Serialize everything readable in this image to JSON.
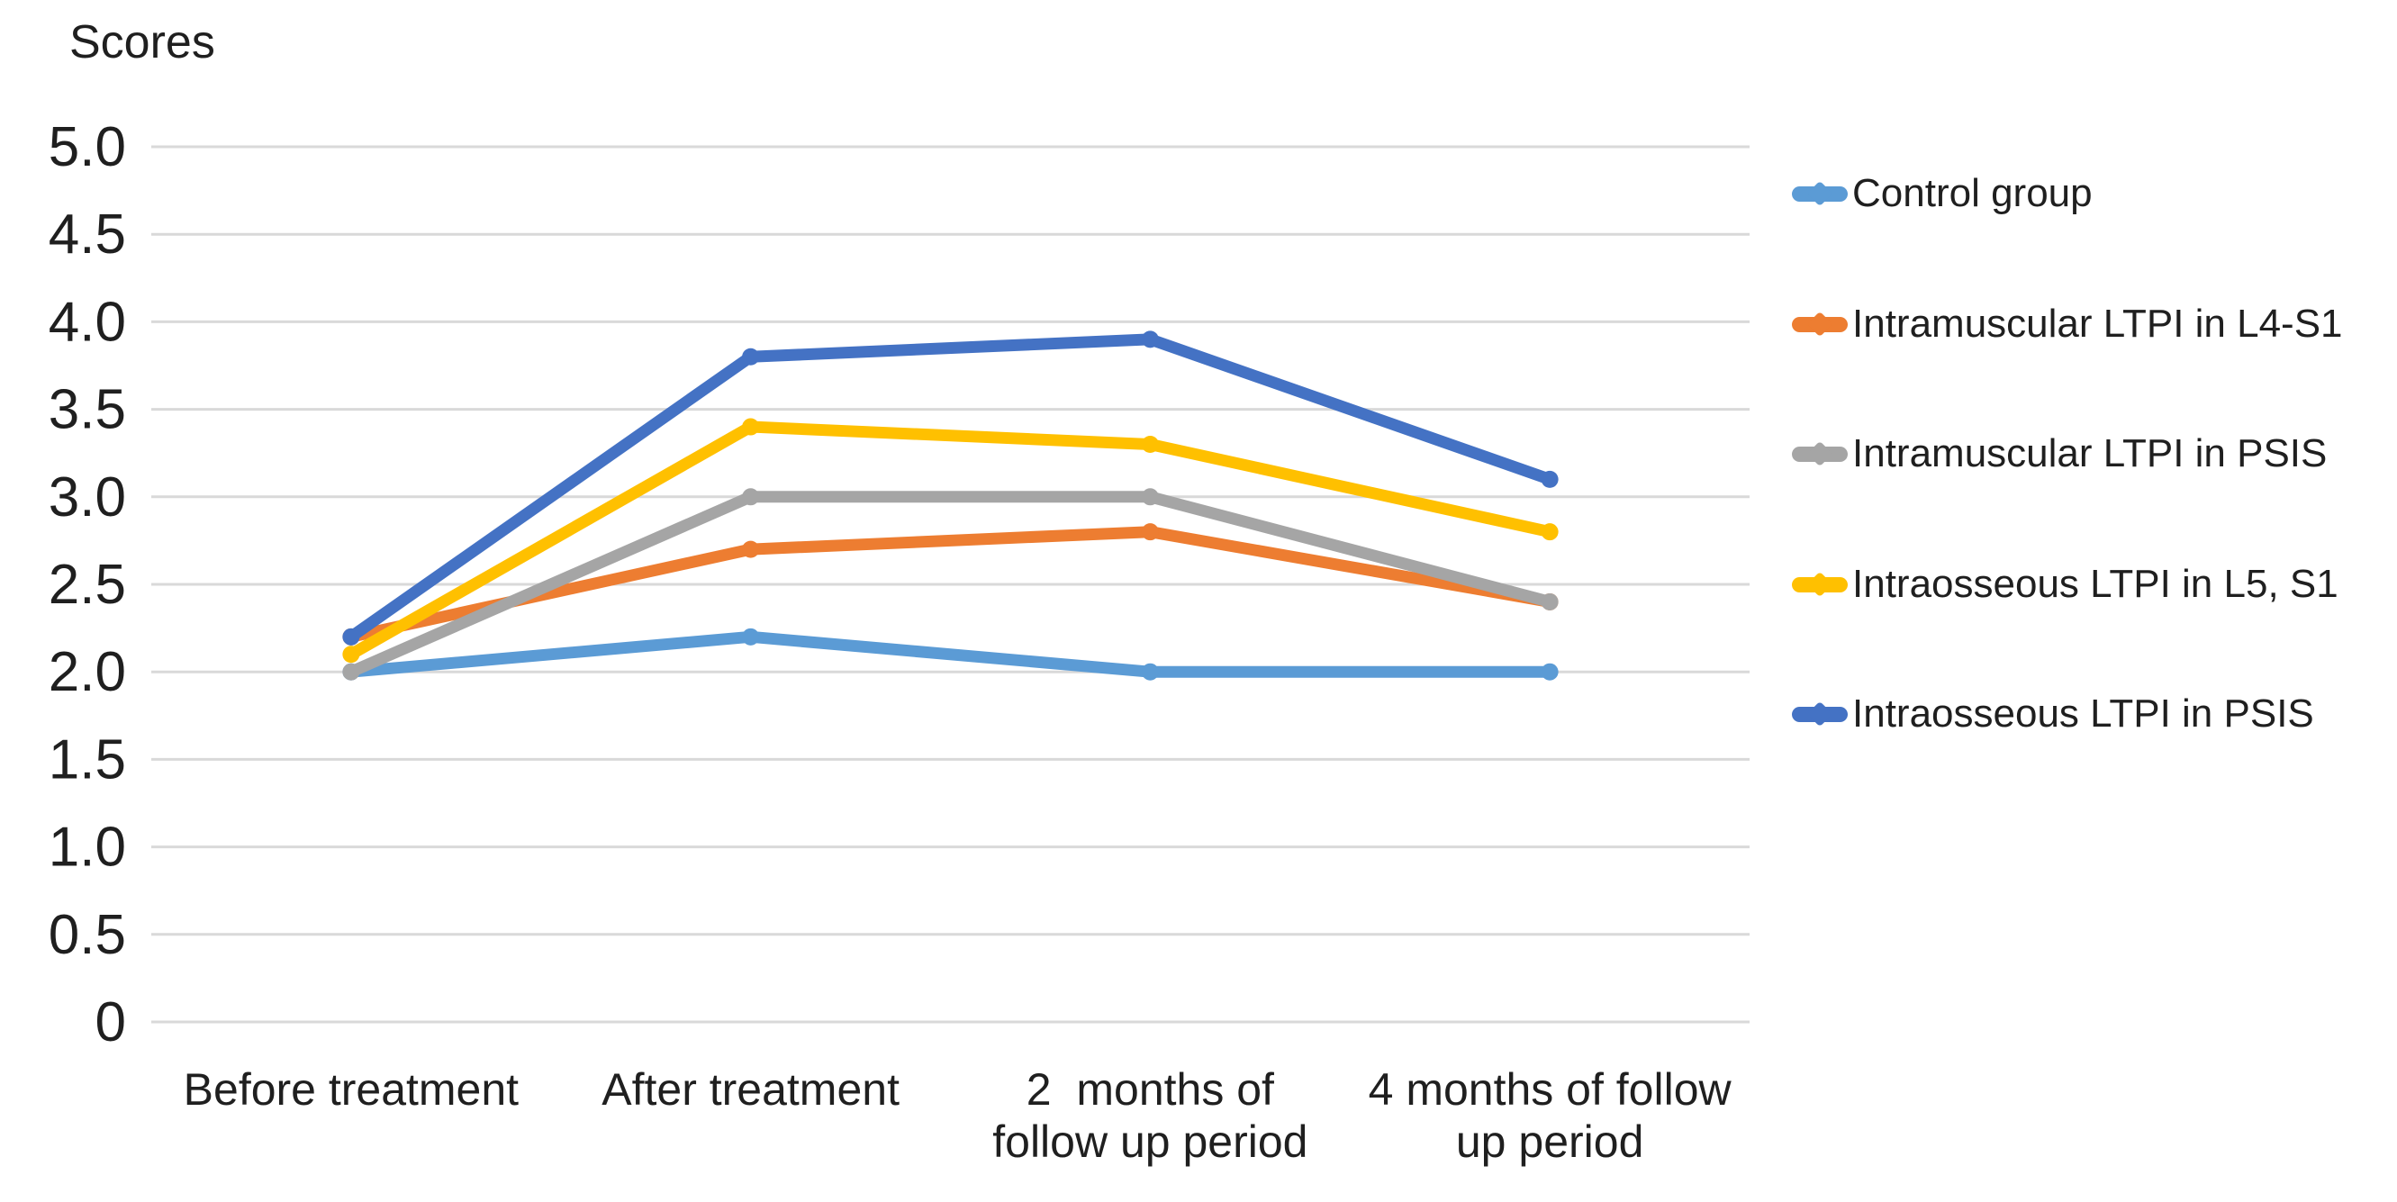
{
  "title": "Scores",
  "chart_data": {
    "type": "line",
    "title": "Scores",
    "xlabel": "",
    "ylabel": "Scores",
    "categories": [
      "Before treatment",
      "After treatment",
      "2 months of follow up period",
      "4 months of follow up period"
    ],
    "category_label_lines": [
      [
        "Before treatment"
      ],
      [
        "After treatment"
      ],
      [
        "2  months of",
        "follow up period"
      ],
      [
        "4 months of follow",
        "up period"
      ]
    ],
    "series": [
      {
        "name": "Control group",
        "color": "#5B9BD5",
        "values": [
          2.0,
          2.2,
          2.0,
          2.0
        ]
      },
      {
        "name": "Intramuscular LTPI in L4-S1",
        "color": "#ED7D31",
        "values": [
          2.2,
          2.7,
          2.8,
          2.4
        ]
      },
      {
        "name": "Intramuscular LTPI in PSIS",
        "color": "#A5A5A5",
        "values": [
          2.0,
          3.0,
          3.0,
          2.4
        ]
      },
      {
        "name": "Intraosseous LTPI in L5, S1",
        "color": "#FFC000",
        "values": [
          2.1,
          3.4,
          3.3,
          2.8
        ]
      },
      {
        "name": "Intraosseous LTPI in PSIS",
        "color": "#4472C4",
        "values": [
          2.2,
          3.8,
          3.9,
          3.1
        ]
      }
    ],
    "ylim": [
      0,
      5
    ],
    "ytick_step": 0.5,
    "ytick_labels": [
      "5.0",
      "4.5",
      "4.0",
      "3.5",
      "3.0",
      "2.5",
      "2.0",
      "1.5",
      "1.0",
      "0.5",
      "0"
    ],
    "grid": true,
    "legend_position": "right"
  },
  "colors": {
    "background": "#FFFFFF",
    "gridline": "#D9D9D9",
    "text": "#1F1F1F"
  }
}
